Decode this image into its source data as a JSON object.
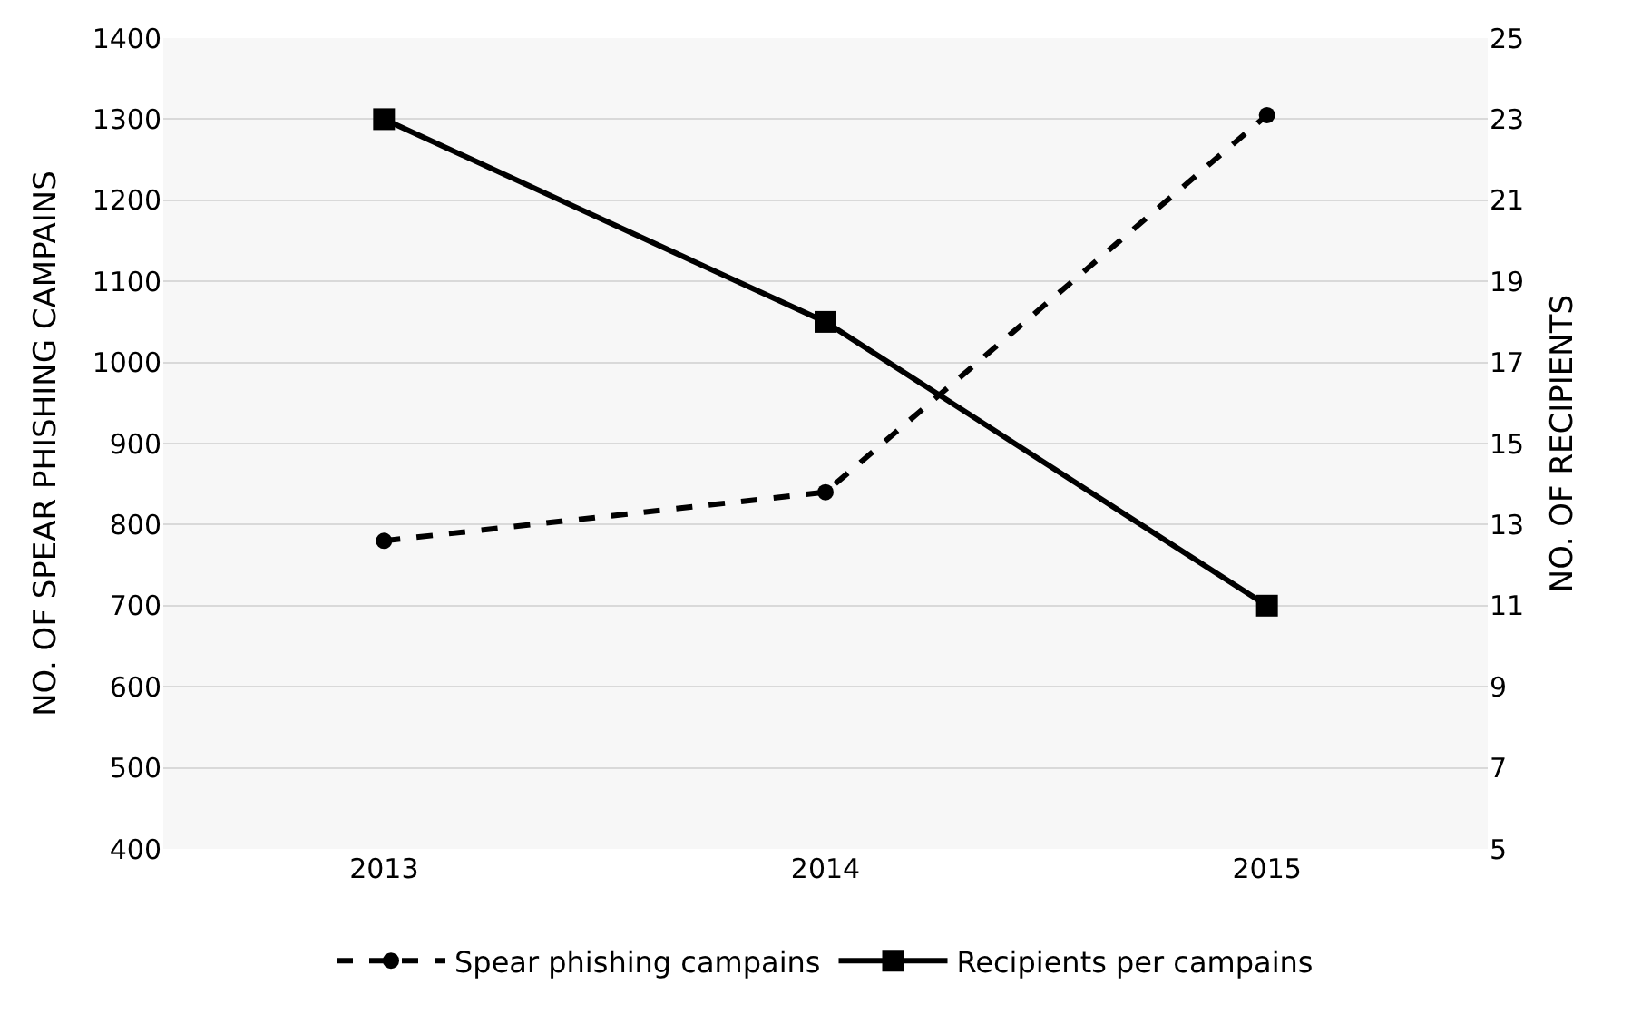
{
  "chart_data": {
    "type": "line",
    "xlabel": null,
    "ylabel": "NO. OF SPEAR PHISHING CAMPAINS",
    "y2label": "NO. OF RECIPIENTS",
    "categories": [
      "2013",
      "2014",
      "2015"
    ],
    "series": [
      {
        "name": "Spear phishing campains",
        "color": "#000000",
        "values": [
          780,
          840,
          1305
        ],
        "line_style": "dashed",
        "marker": "circle"
      },
      {
        "name": "Recipients per campains",
        "color": "#000000",
        "values": [
          23,
          18,
          11
        ],
        "axis": "y2",
        "line_style": "solid",
        "marker": "square"
      }
    ],
    "ylim": [
      400,
      1400
    ],
    "yticks": [
      400,
      500,
      600,
      700,
      800,
      900,
      1000,
      1100,
      1200,
      1300,
      1400
    ],
    "y2lim": [
      5,
      25
    ],
    "y2ticks": [
      5,
      7,
      9,
      11,
      13,
      15,
      17,
      19,
      21,
      23,
      25
    ],
    "grid": "y",
    "legend": "bottom"
  }
}
